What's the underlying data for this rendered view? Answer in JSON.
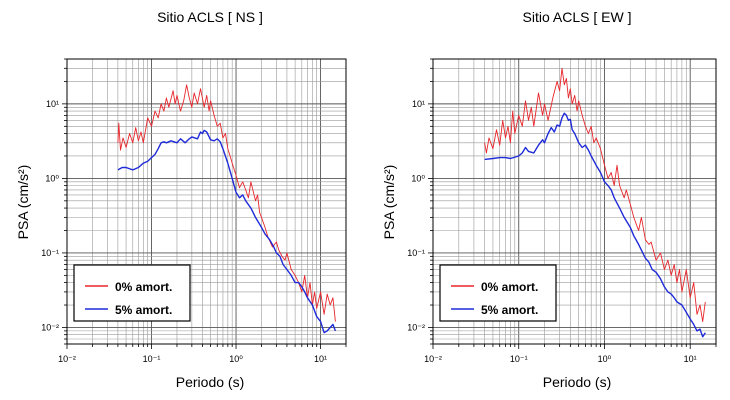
{
  "chart_data": [
    {
      "type": "line",
      "title": "Sitio ACLS [ NS ]",
      "xlabel": "Periodo (s)",
      "ylabel": "PSA (cm/s²)",
      "xscale": "log",
      "yscale": "log",
      "xlim": [
        0.01,
        20
      ],
      "ylim": [
        0.006,
        40
      ],
      "grid": true,
      "legend_position": "bottom-left",
      "x_tick_labels": [
        "10⁻²",
        "10⁻¹",
        "10⁰",
        "10¹"
      ],
      "y_tick_labels": [
        "10⁻²",
        "10⁻¹",
        "10⁰",
        "10¹"
      ],
      "series": [
        {
          "name": "0% amort.",
          "color": "#e8262b",
          "points": [
            [
              0.04,
              3.0
            ],
            [
              0.041,
              5.5
            ],
            [
              0.043,
              2.4
            ],
            [
              0.046,
              3.5
            ],
            [
              0.05,
              2.6
            ],
            [
              0.055,
              4.0
            ],
            [
              0.06,
              3.0
            ],
            [
              0.065,
              4.8
            ],
            [
              0.07,
              3.2
            ],
            [
              0.075,
              4.2
            ],
            [
              0.08,
              3.0
            ],
            [
              0.09,
              6.5
            ],
            [
              0.1,
              5.0
            ],
            [
              0.11,
              8.0
            ],
            [
              0.12,
              6.5
            ],
            [
              0.13,
              10.0
            ],
            [
              0.14,
              8.0
            ],
            [
              0.15,
              12.0
            ],
            [
              0.16,
              9.0
            ],
            [
              0.18,
              15.0
            ],
            [
              0.19,
              10.0
            ],
            [
              0.2,
              13.0
            ],
            [
              0.22,
              8.0
            ],
            [
              0.24,
              11.0
            ],
            [
              0.26,
              18.0
            ],
            [
              0.28,
              12.0
            ],
            [
              0.3,
              9.0
            ],
            [
              0.32,
              14.0
            ],
            [
              0.35,
              10.0
            ],
            [
              0.38,
              16.0
            ],
            [
              0.42,
              9.0
            ],
            [
              0.45,
              13.0
            ],
            [
              0.48,
              8.0
            ],
            [
              0.5,
              11.0
            ],
            [
              0.55,
              7.0
            ],
            [
              0.6,
              5.0
            ],
            [
              0.65,
              5.5
            ],
            [
              0.7,
              3.5
            ],
            [
              0.75,
              4.0
            ],
            [
              0.8,
              2.5
            ],
            [
              0.85,
              2.0
            ],
            [
              0.9,
              1.6
            ],
            [
              1.0,
              1.1
            ],
            [
              1.1,
              0.75
            ],
            [
              1.2,
              0.9
            ],
            [
              1.3,
              0.7
            ],
            [
              1.4,
              0.55
            ],
            [
              1.5,
              0.9
            ],
            [
              1.7,
              0.5
            ],
            [
              1.8,
              0.6
            ],
            [
              1.9,
              0.35
            ],
            [
              2.0,
              0.3
            ],
            [
              2.2,
              0.22
            ],
            [
              2.4,
              0.16
            ],
            [
              2.7,
              0.12
            ],
            [
              3.0,
              0.14
            ],
            [
              3.2,
              0.11
            ],
            [
              3.5,
              0.09
            ],
            [
              3.8,
              0.08
            ],
            [
              4.0,
              0.1
            ],
            [
              4.5,
              0.06
            ],
            [
              5.0,
              0.05
            ],
            [
              5.5,
              0.04
            ],
            [
              6.0,
              0.03
            ],
            [
              6.5,
              0.05
            ],
            [
              7.0,
              0.025
            ],
            [
              7.5,
              0.04
            ],
            [
              8.0,
              0.02
            ],
            [
              8.5,
              0.03
            ],
            [
              9.0,
              0.018
            ],
            [
              10.0,
              0.03
            ],
            [
              11.0,
              0.015
            ],
            [
              12.0,
              0.028
            ],
            [
              13.0,
              0.02
            ],
            [
              14.0,
              0.025
            ],
            [
              15.0,
              0.012
            ]
          ]
        },
        {
          "name": "5% amort.",
          "color": "#1f2bd9",
          "points": [
            [
              0.04,
              1.3
            ],
            [
              0.045,
              1.4
            ],
            [
              0.05,
              1.4
            ],
            [
              0.06,
              1.3
            ],
            [
              0.07,
              1.4
            ],
            [
              0.08,
              1.6
            ],
            [
              0.09,
              1.7
            ],
            [
              0.1,
              1.9
            ],
            [
              0.11,
              2.1
            ],
            [
              0.12,
              2.5
            ],
            [
              0.13,
              3.0
            ],
            [
              0.14,
              3.1
            ],
            [
              0.15,
              3.0
            ],
            [
              0.17,
              3.2
            ],
            [
              0.2,
              3.0
            ],
            [
              0.22,
              3.4
            ],
            [
              0.25,
              3.0
            ],
            [
              0.28,
              3.4
            ],
            [
              0.3,
              3.6
            ],
            [
              0.35,
              3.4
            ],
            [
              0.38,
              4.2
            ],
            [
              0.4,
              4.0
            ],
            [
              0.42,
              4.4
            ],
            [
              0.45,
              4.2
            ],
            [
              0.5,
              3.3
            ],
            [
              0.55,
              3.2
            ],
            [
              0.6,
              3.4
            ],
            [
              0.65,
              3.1
            ],
            [
              0.7,
              2.5
            ],
            [
              0.8,
              1.6
            ],
            [
              0.9,
              1.0
            ],
            [
              1.0,
              0.65
            ],
            [
              1.1,
              0.55
            ],
            [
              1.2,
              0.6
            ],
            [
              1.3,
              0.5
            ],
            [
              1.5,
              0.4
            ],
            [
              1.7,
              0.3
            ],
            [
              2.0,
              0.22
            ],
            [
              2.2,
              0.18
            ],
            [
              2.5,
              0.15
            ],
            [
              2.8,
              0.12
            ],
            [
              3.0,
              0.1
            ],
            [
              3.3,
              0.09
            ],
            [
              3.6,
              0.07
            ],
            [
              4.0,
              0.06
            ],
            [
              4.5,
              0.05
            ],
            [
              5.0,
              0.04
            ],
            [
              5.5,
              0.04
            ],
            [
              6.0,
              0.035
            ],
            [
              6.5,
              0.03
            ],
            [
              7.0,
              0.025
            ],
            [
              8.0,
              0.02
            ],
            [
              9.0,
              0.014
            ],
            [
              10.0,
              0.012
            ],
            [
              11.0,
              0.0085
            ],
            [
              12.0,
              0.009
            ],
            [
              13.0,
              0.01
            ],
            [
              14.0,
              0.011
            ],
            [
              15.0,
              0.009
            ]
          ]
        }
      ]
    },
    {
      "type": "line",
      "title": "Sitio ACLS [ EW ]",
      "xlabel": "Periodo (s)",
      "ylabel": "PSA (cm/s²)",
      "xscale": "log",
      "yscale": "log",
      "xlim": [
        0.01,
        20
      ],
      "ylim": [
        0.006,
        40
      ],
      "grid": true,
      "legend_position": "bottom-left",
      "x_tick_labels": [
        "10⁻²",
        "10⁻¹",
        "10⁰",
        "10¹"
      ],
      "y_tick_labels": [
        "10⁻²",
        "10⁻¹",
        "10⁰",
        "10¹"
      ],
      "series": [
        {
          "name": "0% amort.",
          "color": "#e8262b",
          "points": [
            [
              0.04,
              3.0
            ],
            [
              0.042,
              2.2
            ],
            [
              0.045,
              3.5
            ],
            [
              0.05,
              2.5
            ],
            [
              0.055,
              4.5
            ],
            [
              0.06,
              2.8
            ],
            [
              0.065,
              6.0
            ],
            [
              0.07,
              3.5
            ],
            [
              0.075,
              5.0
            ],
            [
              0.08,
              3.0
            ],
            [
              0.085,
              8.0
            ],
            [
              0.09,
              4.0
            ],
            [
              0.1,
              7.0
            ],
            [
              0.11,
              5.0
            ],
            [
              0.12,
              11.0
            ],
            [
              0.13,
              6.0
            ],
            [
              0.14,
              9.0
            ],
            [
              0.15,
              5.0
            ],
            [
              0.17,
              14.0
            ],
            [
              0.19,
              7.0
            ],
            [
              0.2,
              10.0
            ],
            [
              0.22,
              6.0
            ],
            [
              0.25,
              12.0
            ],
            [
              0.28,
              20.0
            ],
            [
              0.3,
              15.0
            ],
            [
              0.32,
              30.0
            ],
            [
              0.34,
              18.0
            ],
            [
              0.36,
              22.0
            ],
            [
              0.38,
              12.0
            ],
            [
              0.4,
              16.0
            ],
            [
              0.42,
              10.0
            ],
            [
              0.45,
              13.0
            ],
            [
              0.48,
              8.0
            ],
            [
              0.5,
              11.0
            ],
            [
              0.55,
              7.0
            ],
            [
              0.6,
              5.0
            ],
            [
              0.65,
              4.0
            ],
            [
              0.7,
              5.0
            ],
            [
              0.75,
              3.0
            ],
            [
              0.8,
              3.5
            ],
            [
              0.9,
              2.5
            ],
            [
              1.0,
              1.5
            ],
            [
              1.1,
              1.0
            ],
            [
              1.2,
              1.2
            ],
            [
              1.3,
              0.8
            ],
            [
              1.4,
              1.5
            ],
            [
              1.5,
              0.8
            ],
            [
              1.7,
              0.55
            ],
            [
              1.8,
              0.7
            ],
            [
              2.0,
              0.45
            ],
            [
              2.2,
              0.3
            ],
            [
              2.5,
              0.2
            ],
            [
              2.7,
              0.3
            ],
            [
              3.0,
              0.15
            ],
            [
              3.3,
              0.13
            ],
            [
              3.5,
              0.14
            ],
            [
              4.0,
              0.08
            ],
            [
              4.5,
              0.1
            ],
            [
              5.0,
              0.06
            ],
            [
              5.5,
              0.08
            ],
            [
              6.0,
              0.05
            ],
            [
              6.5,
              0.07
            ],
            [
              7.0,
              0.04
            ],
            [
              7.5,
              0.06
            ],
            [
              8.0,
              0.03
            ],
            [
              9.0,
              0.06
            ],
            [
              10.0,
              0.025
            ],
            [
              11.0,
              0.04
            ],
            [
              12.0,
              0.015
            ],
            [
              13.0,
              0.02
            ],
            [
              14.0,
              0.012
            ],
            [
              15.0,
              0.022
            ]
          ]
        },
        {
          "name": "5% amort.",
          "color": "#1f2bd9",
          "points": [
            [
              0.04,
              1.8
            ],
            [
              0.05,
              1.85
            ],
            [
              0.06,
              1.9
            ],
            [
              0.07,
              1.9
            ],
            [
              0.08,
              1.85
            ],
            [
              0.1,
              2.0
            ],
            [
              0.11,
              2.2
            ],
            [
              0.12,
              2.6
            ],
            [
              0.13,
              2.3
            ],
            [
              0.15,
              2.2
            ],
            [
              0.17,
              2.8
            ],
            [
              0.19,
              3.3
            ],
            [
              0.2,
              3.0
            ],
            [
              0.22,
              4.0
            ],
            [
              0.24,
              4.8
            ],
            [
              0.26,
              4.2
            ],
            [
              0.28,
              5.2
            ],
            [
              0.3,
              5.0
            ],
            [
              0.32,
              6.5
            ],
            [
              0.34,
              7.5
            ],
            [
              0.36,
              7.0
            ],
            [
              0.38,
              6.0
            ],
            [
              0.4,
              6.2
            ],
            [
              0.42,
              4.5
            ],
            [
              0.45,
              4.0
            ],
            [
              0.5,
              3.0
            ],
            [
              0.55,
              2.6
            ],
            [
              0.6,
              2.8
            ],
            [
              0.65,
              2.4
            ],
            [
              0.7,
              2.0
            ],
            [
              0.8,
              1.5
            ],
            [
              0.9,
              1.2
            ],
            [
              1.0,
              0.9
            ],
            [
              1.1,
              0.8
            ],
            [
              1.2,
              0.7
            ],
            [
              1.3,
              0.55
            ],
            [
              1.5,
              0.4
            ],
            [
              1.7,
              0.3
            ],
            [
              2.0,
              0.22
            ],
            [
              2.2,
              0.17
            ],
            [
              2.5,
              0.13
            ],
            [
              2.8,
              0.1
            ],
            [
              3.0,
              0.085
            ],
            [
              3.3,
              0.075
            ],
            [
              3.6,
              0.06
            ],
            [
              4.0,
              0.055
            ],
            [
              4.5,
              0.045
            ],
            [
              5.0,
              0.035
            ],
            [
              5.5,
              0.03
            ],
            [
              6.0,
              0.028
            ],
            [
              6.5,
              0.025
            ],
            [
              7.0,
              0.022
            ],
            [
              8.0,
              0.02
            ],
            [
              9.0,
              0.016
            ],
            [
              10.0,
              0.013
            ],
            [
              11.0,
              0.011
            ],
            [
              12.0,
              0.009
            ],
            [
              13.0,
              0.0095
            ],
            [
              14.0,
              0.0075
            ],
            [
              15.0,
              0.0085
            ]
          ]
        }
      ]
    }
  ]
}
